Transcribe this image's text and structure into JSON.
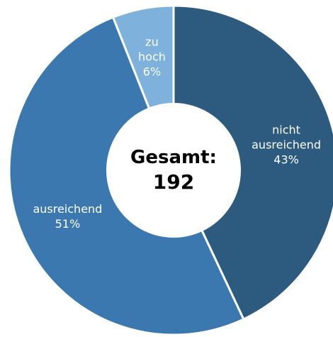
{
  "chart_data": {
    "type": "donut",
    "categories": [
      "nicht ausreichend",
      "ausreichend",
      "zu hoch"
    ],
    "values": [
      43,
      51,
      6
    ],
    "value_labels": [
      "43%",
      "51%",
      "6%"
    ],
    "colors": [
      "#2d5b80",
      "#3b78b0",
      "#7eb1db"
    ],
    "center_label": "Gesamt:",
    "total": 192
  }
}
